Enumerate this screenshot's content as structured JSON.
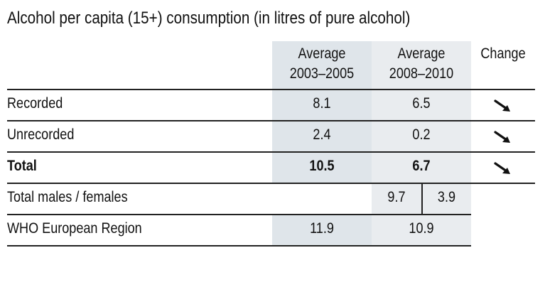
{
  "title": "Alcohol per capita (15+) consumption (in litres of pure alcohol)",
  "headers": {
    "col1_line1": "Average",
    "col1_line2": "2003–2005",
    "col2_line1": "Average",
    "col2_line2": "2008–2010",
    "change": "Change"
  },
  "rows": {
    "recorded": {
      "label": "Recorded",
      "v1": "8.1",
      "v2": "6.5",
      "change_icon": "arrow-down-right-icon"
    },
    "unrecorded": {
      "label": "Unrecorded",
      "v1": "2.4",
      "v2": "0.2",
      "change_icon": "arrow-down-right-icon"
    },
    "total": {
      "label": "Total",
      "v1": "10.5",
      "v2": "6.7",
      "change_icon": "arrow-down-right-icon"
    },
    "males_females": {
      "label": "Total males / females",
      "males": "9.7",
      "females": "3.9"
    },
    "who_region": {
      "label": "WHO European Region",
      "v1": "11.9",
      "v2": "10.9"
    }
  },
  "colors": {
    "shade_col1": "#dfe5ea",
    "shade_col2": "#e9ecef",
    "rule": "#222222"
  }
}
